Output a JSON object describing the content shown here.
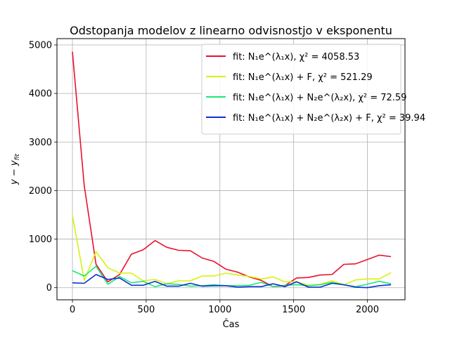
{
  "chart_data": {
    "type": "line",
    "title": "Odstopanja modelov z linearno odvisnostjo v eksponentu",
    "xlabel": "Čas",
    "ylabel": "y − y_fit",
    "xlim": [
      -105,
      2255
    ],
    "ylim": [
      -250,
      5130
    ],
    "xticks": [
      0,
      500,
      1000,
      1500,
      2000
    ],
    "yticks": [
      0,
      1000,
      2000,
      3000,
      4000,
      5000
    ],
    "grid": true,
    "legend_position": "top-right",
    "x": [
      0,
      80,
      160,
      240,
      320,
      400,
      480,
      560,
      640,
      720,
      800,
      880,
      960,
      1040,
      1120,
      1200,
      1280,
      1360,
      1440,
      1520,
      1600,
      1680,
      1760,
      1840,
      1920,
      2000,
      2080,
      2160
    ],
    "series": [
      {
        "name": "fit: N₁e^{λ₁x}, χ² = 4058.53",
        "legend_label": "fit: N₁e^(λ₁x), χ² = 4058.53",
        "color": "#e8112d",
        "values": [
          4860,
          2100,
          480,
          120,
          270,
          690,
          780,
          970,
          830,
          770,
          760,
          610,
          540,
          380,
          320,
          220,
          150,
          20,
          40,
          200,
          210,
          260,
          270,
          480,
          490,
          580,
          670,
          640
        ]
      },
      {
        "name": "fit: N₁e^{λ₁x} + F, χ² = 521.29",
        "legend_label": "fit: N₁e^(λ₁x) + F, χ² = 521.29",
        "color": "#d7f20a",
        "values": [
          1490,
          150,
          740,
          410,
          300,
          300,
          140,
          170,
          80,
          140,
          140,
          240,
          240,
          300,
          260,
          230,
          180,
          220,
          120,
          120,
          50,
          70,
          140,
          60,
          160,
          180,
          180,
          310
        ]
      },
      {
        "name": "fit: N₁e^{λ₁x} + N₂e^{λ₂x}, χ² = 72.59",
        "legend_label": "fit: N₁e^(λ₁x) + N₂e^(λ₂x), χ² = 72.59",
        "color": "#1ae87a",
        "values": [
          350,
          240,
          440,
          70,
          230,
          100,
          130,
          20,
          80,
          70,
          30,
          40,
          60,
          40,
          40,
          50,
          110,
          20,
          50,
          60,
          40,
          60,
          110,
          60,
          20,
          70,
          130,
          80
        ]
      },
      {
        "name": "fit: N₁e^{λ₁x} + N₂e^{λ₂x} + F, χ² = 39.94",
        "legend_label": "fit: N₁e^(λ₁x) + N₂e^(λ₂x) + F, χ² = 39.94",
        "color": "#0c2fd6",
        "values": [
          100,
          90,
          270,
          170,
          200,
          50,
          50,
          130,
          30,
          30,
          90,
          30,
          40,
          40,
          10,
          20,
          20,
          80,
          20,
          120,
          10,
          10,
          90,
          60,
          10,
          0,
          40,
          60
        ]
      }
    ]
  }
}
